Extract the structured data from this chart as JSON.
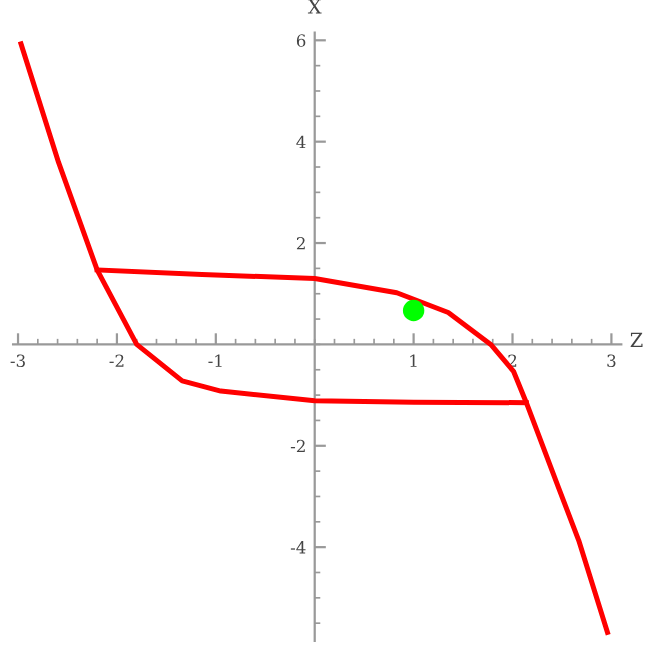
{
  "chart_data": {
    "type": "line",
    "xlabel": "Z",
    "ylabel": "X",
    "xlim": [
      -3.05,
      3.1
    ],
    "ylim": [
      -5.85,
      6.15
    ],
    "xticks": [
      -3,
      -2,
      -1,
      1,
      2,
      3
    ],
    "yticks": [
      -4,
      -2,
      2,
      4,
      6
    ],
    "grid": false,
    "legend": false,
    "series": [
      {
        "color": "#ff0000",
        "x": [
          -2.97,
          -2.59,
          -2.2,
          -1.8,
          -1.34,
          -0.95,
          0,
          1,
          2.14
        ],
        "values": [
          5.93,
          3.59,
          1.47,
          0,
          -0.72,
          -0.92,
          -1.11,
          -1.14,
          -1.15
        ]
      },
      {
        "color": "#ff0000",
        "x": [
          -2.2,
          -1.14,
          0,
          0.83,
          1.35,
          1.78,
          2.01,
          2.14,
          2.47,
          2.67,
          2.96
        ],
        "values": [
          1.47,
          1.38,
          1.3,
          1.02,
          0.63,
          0,
          -0.53,
          -1.15,
          -2.85,
          -3.87,
          -5.68
        ]
      },
      {
        "type": "scatter",
        "marker": "circle",
        "color": "#00ff00",
        "x": [
          1
        ],
        "values": [
          0.67
        ]
      }
    ]
  }
}
